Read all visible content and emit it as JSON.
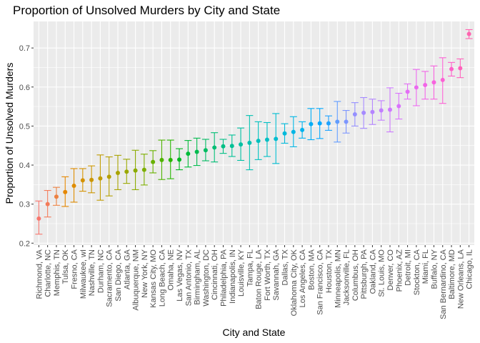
{
  "chart_data": {
    "type": "scatter",
    "title": "Proportion of Unsolved Murders by City and State",
    "xlabel": "City and State",
    "ylabel": "Proportion of Unsolved Murders",
    "ylim": [
      0.195,
      0.768
    ],
    "yticks": [
      0.2,
      0.3,
      0.4,
      0.5,
      0.6,
      0.7
    ],
    "grid": true,
    "legend": "none",
    "error_bars": true,
    "points": [
      {
        "label": "Richmond, VA",
        "y": 0.263,
        "lo": 0.223,
        "hi": 0.308,
        "color": "#F8766D"
      },
      {
        "label": "Charlotte, NC",
        "y": 0.3,
        "lo": 0.267,
        "hi": 0.335,
        "color": "#F37B59"
      },
      {
        "label": "Memphis, TN",
        "y": 0.319,
        "lo": 0.297,
        "hi": 0.343,
        "color": "#ED8141"
      },
      {
        "label": "Tulsa, OK",
        "y": 0.331,
        "lo": 0.294,
        "hi": 0.37,
        "color": "#E58700"
      },
      {
        "label": "Fresno, CA",
        "y": 0.347,
        "lo": 0.305,
        "hi": 0.391,
        "color": "#DE8C00"
      },
      {
        "label": "Milwaukee, wI",
        "y": 0.361,
        "lo": 0.333,
        "hi": 0.391,
        "color": "#D49200"
      },
      {
        "label": "Nashville, TN",
        "y": 0.362,
        "lo": 0.329,
        "hi": 0.398,
        "color": "#CB9600"
      },
      {
        "label": "Durham, NC",
        "y": 0.366,
        "lo": 0.31,
        "hi": 0.426,
        "color": "#C09B00"
      },
      {
        "label": "Sacramento, CA",
        "y": 0.37,
        "lo": 0.321,
        "hi": 0.421,
        "color": "#B59F00"
      },
      {
        "label": "San Diego, CA",
        "y": 0.38,
        "lo": 0.337,
        "hi": 0.425,
        "color": "#A8A300"
      },
      {
        "label": "Atlanta, GA",
        "y": 0.383,
        "lo": 0.353,
        "hi": 0.415,
        "color": "#9AA800"
      },
      {
        "label": "Albuquerque, NM",
        "y": 0.386,
        "lo": 0.337,
        "hi": 0.438,
        "color": "#8BAB00"
      },
      {
        "label": "New York, NY",
        "y": 0.388,
        "lo": 0.349,
        "hi": 0.428,
        "color": "#7CAE00"
      },
      {
        "label": "Kansas City, MO",
        "y": 0.408,
        "lo": 0.38,
        "hi": 0.437,
        "color": "#68B100"
      },
      {
        "label": "Long Beach, CA",
        "y": 0.413,
        "lo": 0.363,
        "hi": 0.464,
        "color": "#4FB300"
      },
      {
        "label": "Omaha, NE",
        "y": 0.413,
        "lo": 0.365,
        "hi": 0.464,
        "color": "#27B600"
      },
      {
        "label": "Las Vegas, NV",
        "y": 0.414,
        "lo": 0.388,
        "hi": 0.442,
        "color": "#00B81F"
      },
      {
        "label": "San Antonio, TX",
        "y": 0.429,
        "lo": 0.395,
        "hi": 0.463,
        "color": "#00BA38"
      },
      {
        "label": "Birmingham, AL",
        "y": 0.434,
        "lo": 0.399,
        "hi": 0.469,
        "color": "#00BB4E"
      },
      {
        "label": "Washington, DC",
        "y": 0.438,
        "lo": 0.411,
        "hi": 0.466,
        "color": "#00BC62"
      },
      {
        "label": "Cincinnati, OH",
        "y": 0.445,
        "lo": 0.408,
        "hi": 0.483,
        "color": "#00BE74"
      },
      {
        "label": "Philadelphia, PA",
        "y": 0.448,
        "lo": 0.43,
        "hi": 0.466,
        "color": "#00BF85"
      },
      {
        "label": "Indianapolis, IN",
        "y": 0.449,
        "lo": 0.422,
        "hi": 0.477,
        "color": "#00C095"
      },
      {
        "label": "Louisville, KY",
        "y": 0.453,
        "lo": 0.412,
        "hi": 0.495,
        "color": "#00C0A3"
      },
      {
        "label": "Tampa, FL",
        "y": 0.457,
        "lo": 0.388,
        "hi": 0.527,
        "color": "#00C1B1"
      },
      {
        "label": "Baton Rouge, LA",
        "y": 0.462,
        "lo": 0.414,
        "hi": 0.511,
        "color": "#00C0BE"
      },
      {
        "label": "Fort Worth, TX",
        "y": 0.465,
        "lo": 0.422,
        "hi": 0.509,
        "color": "#00BFC4"
      },
      {
        "label": "Savannah, GA",
        "y": 0.467,
        "lo": 0.404,
        "hi": 0.532,
        "color": "#00BDD0"
      },
      {
        "label": "Dallas, TX",
        "y": 0.481,
        "lo": 0.456,
        "hi": 0.506,
        "color": "#00BADB"
      },
      {
        "label": "Oklahoma City, OK",
        "y": 0.485,
        "lo": 0.447,
        "hi": 0.524,
        "color": "#00B6E5"
      },
      {
        "label": "Los Angeles, CA",
        "y": 0.49,
        "lo": 0.469,
        "hi": 0.511,
        "color": "#00B2EE"
      },
      {
        "label": "Boston, MA",
        "y": 0.505,
        "lo": 0.465,
        "hi": 0.545,
        "color": "#00ADF6"
      },
      {
        "label": "San Francisco, CA",
        "y": 0.507,
        "lo": 0.468,
        "hi": 0.545,
        "color": "#00A8FF"
      },
      {
        "label": "Houston, TX",
        "y": 0.507,
        "lo": 0.489,
        "hi": 0.526,
        "color": "#1EA2FF"
      },
      {
        "label": "Minneapolis, MN",
        "y": 0.511,
        "lo": 0.459,
        "hi": 0.563,
        "color": "#619CFF"
      },
      {
        "label": "Jacksonville, FL",
        "y": 0.511,
        "lo": 0.482,
        "hi": 0.54,
        "color": "#7D96FF"
      },
      {
        "label": "Columbus, OH",
        "y": 0.53,
        "lo": 0.5,
        "hi": 0.56,
        "color": "#9590FF"
      },
      {
        "label": "Pittsburgh, PA",
        "y": 0.534,
        "lo": 0.494,
        "hi": 0.573,
        "color": "#A58AFF"
      },
      {
        "label": "Oakland, CA",
        "y": 0.536,
        "lo": 0.504,
        "hi": 0.569,
        "color": "#B484FF"
      },
      {
        "label": "St. Louis, MO",
        "y": 0.54,
        "lo": 0.515,
        "hi": 0.565,
        "color": "#C17FFF"
      },
      {
        "label": "Denver, CO",
        "y": 0.542,
        "lo": 0.485,
        "hi": 0.598,
        "color": "#CD79FF"
      },
      {
        "label": "Phoenix, AZ",
        "y": 0.551,
        "lo": 0.518,
        "hi": 0.584,
        "color": "#D973FC"
      },
      {
        "label": "Detroit, MI",
        "y": 0.588,
        "lo": 0.569,
        "hi": 0.608,
        "color": "#E36EF6"
      },
      {
        "label": "Stockton, CA",
        "y": 0.599,
        "lo": 0.552,
        "hi": 0.645,
        "color": "#EB69F0"
      },
      {
        "label": "Miami, FL",
        "y": 0.605,
        "lo": 0.569,
        "hi": 0.64,
        "color": "#F265E7"
      },
      {
        "label": "Buffalo, NY",
        "y": 0.612,
        "lo": 0.569,
        "hi": 0.654,
        "color": "#F863DF"
      },
      {
        "label": "San Bernardino, CA",
        "y": 0.618,
        "lo": 0.558,
        "hi": 0.675,
        "color": "#FC61D5"
      },
      {
        "label": "Baltimore, MD",
        "y": 0.646,
        "lo": 0.628,
        "hi": 0.663,
        "color": "#FF61C9"
      },
      {
        "label": "New Orleans, LA",
        "y": 0.648,
        "lo": 0.624,
        "hi": 0.672,
        "color": "#FF62BC"
      },
      {
        "label": "Chicago, IL",
        "y": 0.736,
        "lo": 0.724,
        "hi": 0.747,
        "color": "#FF64B0"
      }
    ]
  }
}
